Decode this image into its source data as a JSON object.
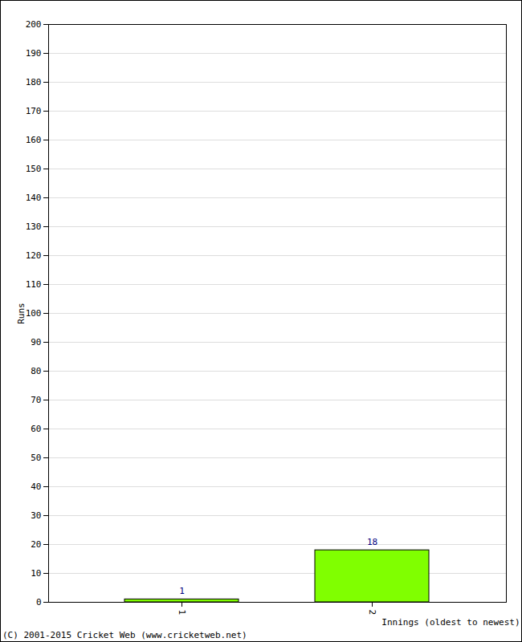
{
  "chart_data": {
    "type": "bar",
    "categories": [
      "1",
      "2"
    ],
    "values": [
      1,
      18
    ],
    "color": "#80ff00",
    "ylim": [
      0,
      200
    ],
    "yticks": [
      0,
      10,
      20,
      30,
      40,
      50,
      60,
      70,
      80,
      90,
      100,
      110,
      120,
      130,
      140,
      150,
      160,
      170,
      180,
      190,
      200
    ],
    "grid": true,
    "data_labels": true,
    "ylabel": "Runs",
    "xlabel": "Innings (oldest to newest)",
    "caption": "(C) 2001-2015 Cricket Web (www.cricketweb.net)"
  }
}
